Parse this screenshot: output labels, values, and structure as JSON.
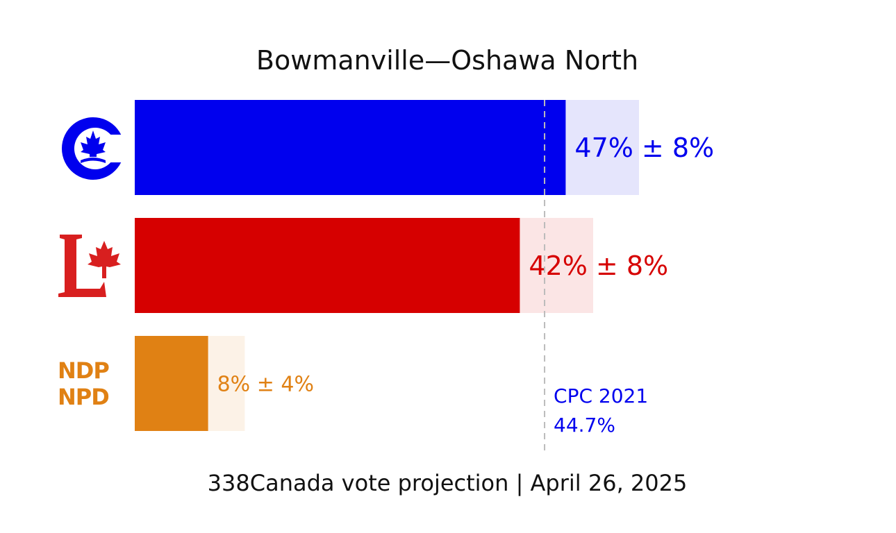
{
  "chart_data": {
    "type": "bar",
    "orientation": "horizontal",
    "title": "Bowmanville—Oshawa North",
    "footer": "338Canada vote projection | April 26, 2025",
    "xlim": [
      0,
      55
    ],
    "series": [
      {
        "party": "CPC",
        "value": 47,
        "error": 8,
        "label": "47% ± 8%",
        "color": "#0000ee",
        "light_color": "#e5e5fc",
        "logo_icon": "conservative-logo-icon"
      },
      {
        "party": "LPC",
        "value": 42,
        "error": 8,
        "label": "42% ± 8%",
        "color": "#d60000",
        "light_color": "#fbe5e5",
        "logo_icon": "liberal-logo-icon"
      },
      {
        "party": "NDP",
        "value": 8,
        "error": 4,
        "label": "8% ± 4%",
        "color": "#e08114",
        "light_color": "#fcf2e7",
        "logo_icon": "ndp-logo-icon",
        "logo_text": [
          "NDP",
          "NPD"
        ]
      }
    ],
    "reference_line": {
      "value": 44.7,
      "label_line1": "CPC 2021",
      "label_line2": "44.7%",
      "color": "#0000ee",
      "style": "dashed"
    }
  }
}
